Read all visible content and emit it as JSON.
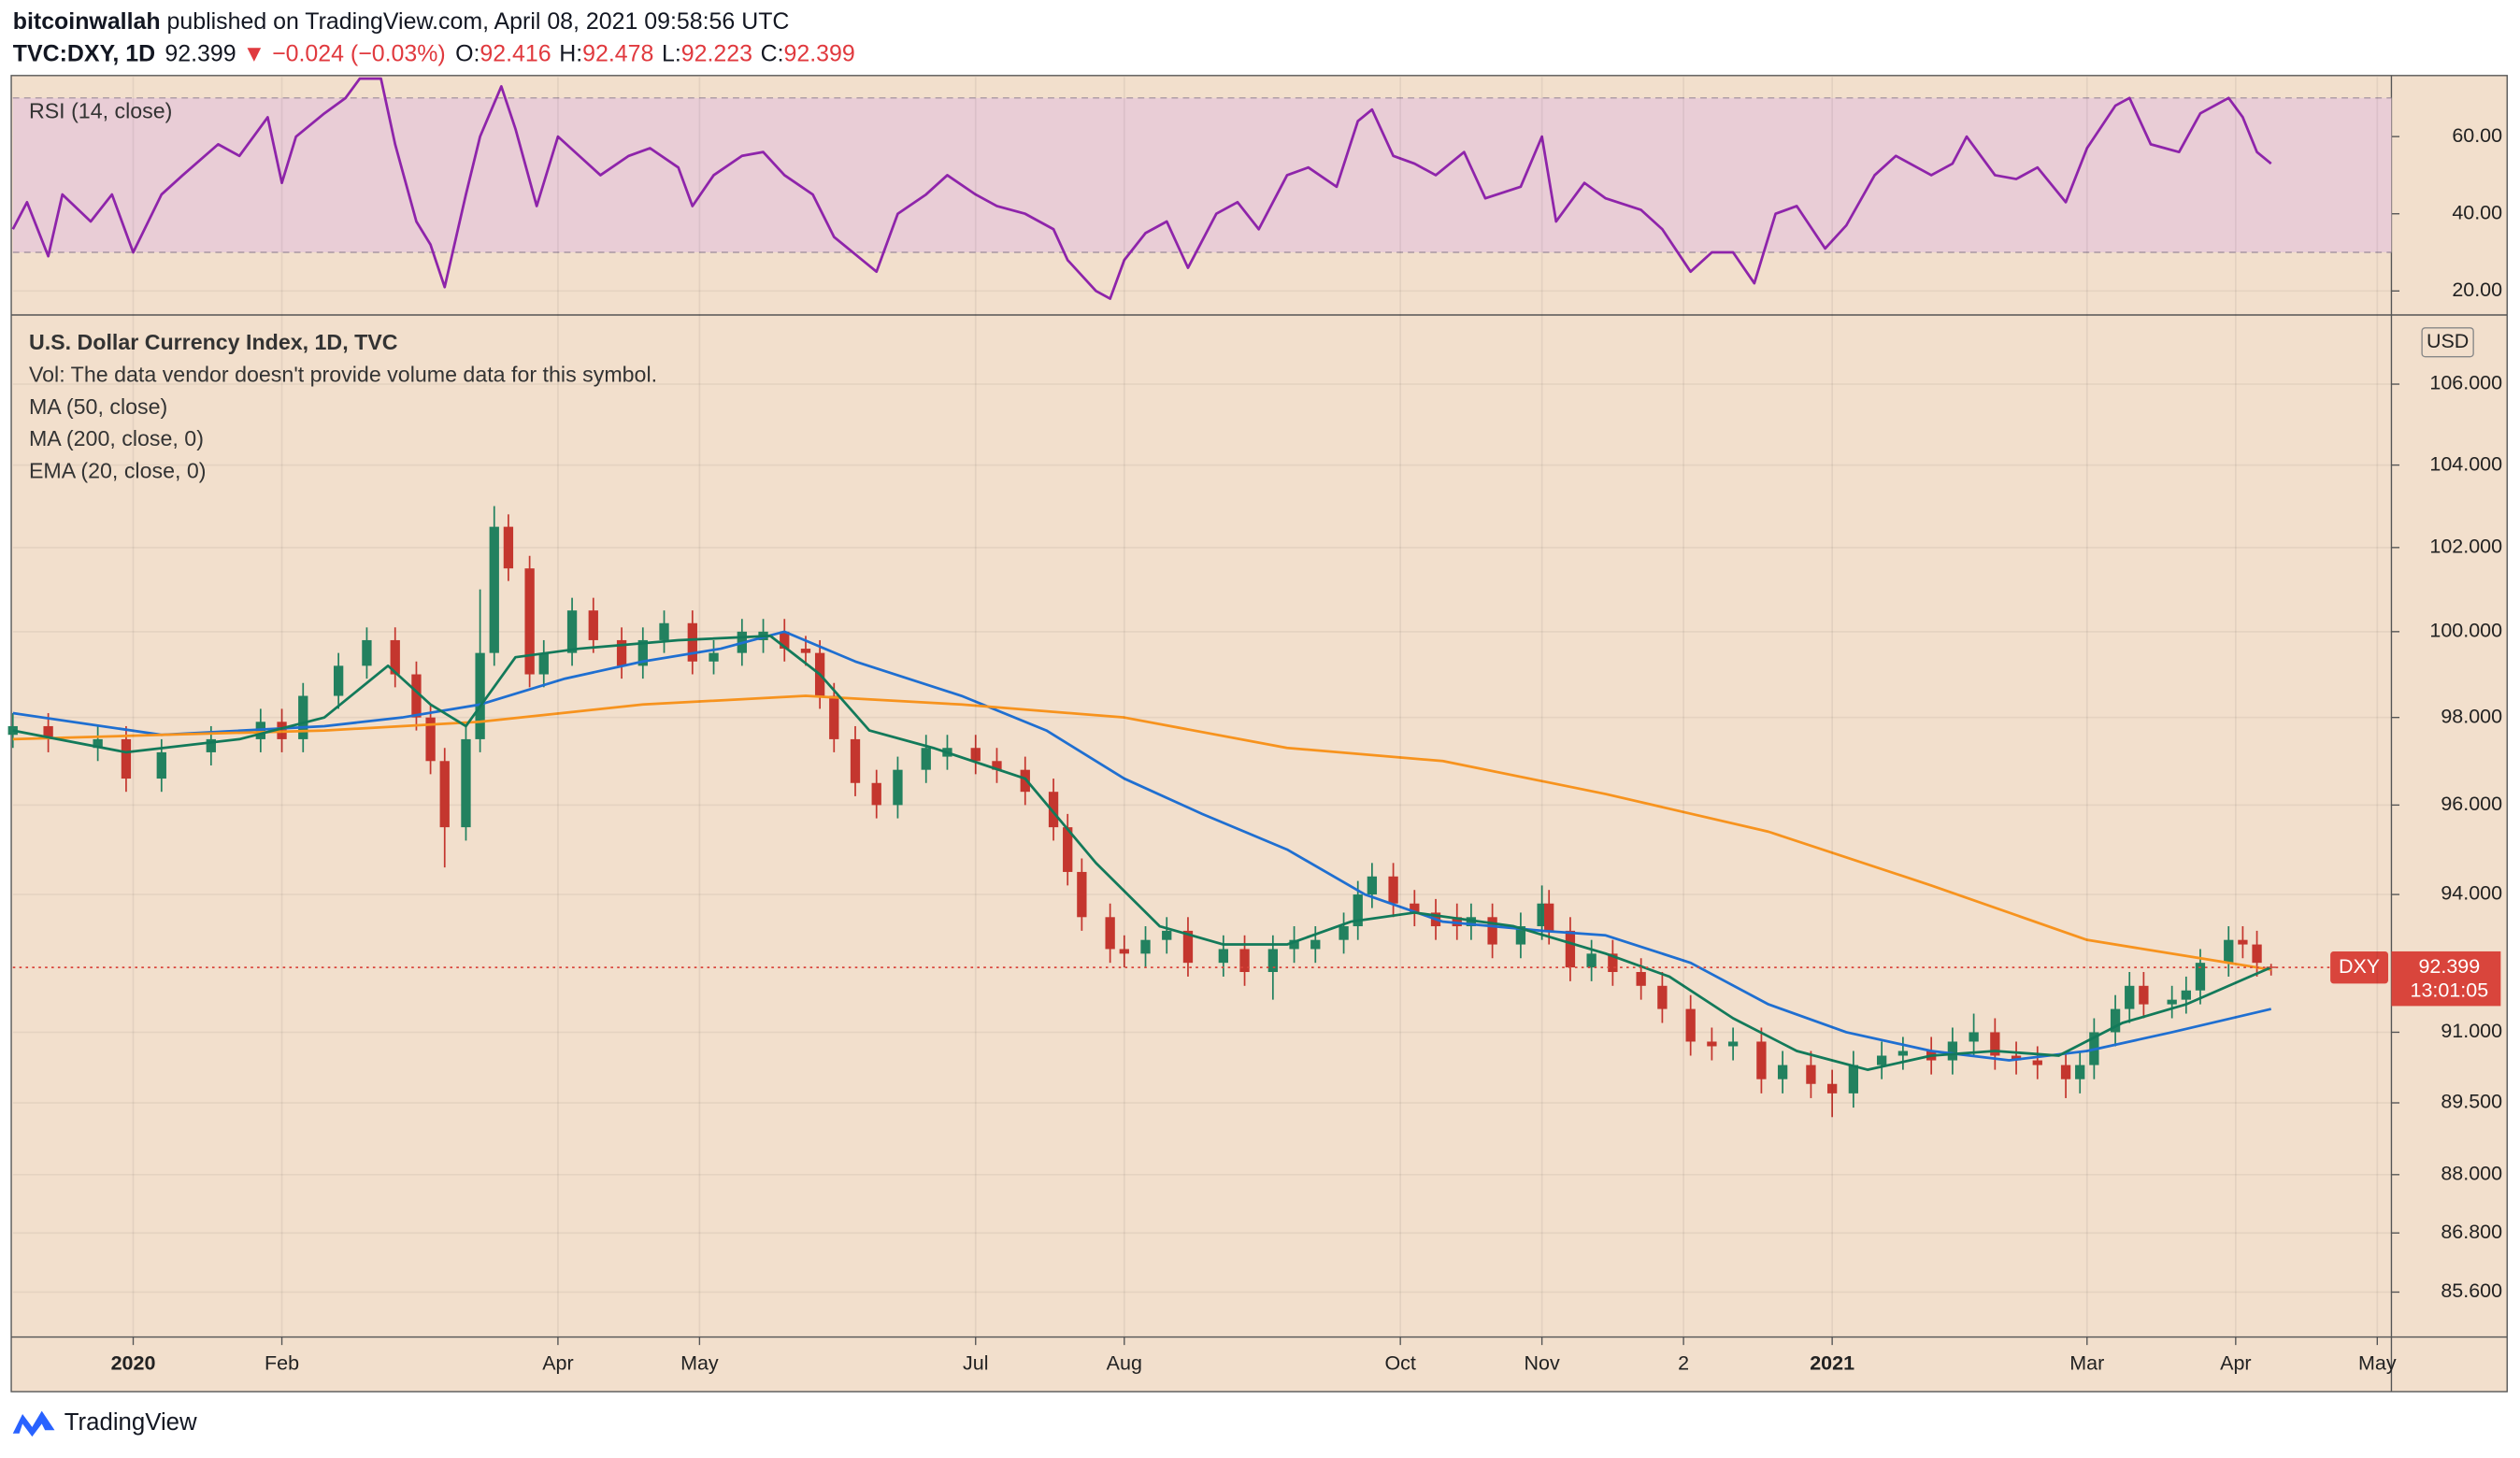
{
  "header": {
    "author": "bitcoinwallah",
    "published": "published on TradingView.com, April 08, 2021 09:58:56 UTC",
    "symbol": "TVC:DXY, 1D",
    "direction": "▼",
    "change": "−0.024 (−0.03%)",
    "open_label": "O:",
    "high_label": "H:",
    "low_label": "L:",
    "close_label": "C:"
  },
  "chart_data": [
    {
      "type": "line",
      "xlim": [
        0,
        336
      ],
      "ylim": [
        14.2,
        75.4
      ],
      "yticks": [
        {
          "value": 20,
          "label": "20.00"
        },
        {
          "value": 40,
          "label": "40.00"
        },
        {
          "value": 60,
          "label": "60.00"
        }
      ],
      "band": [
        30,
        70
      ],
      "band_color": "#e9cdd6",
      "grid": true,
      "series": [
        {
          "name": "RSI (14, close)",
          "color": "#8e24aa",
          "x": [
            0,
            2,
            5,
            7,
            11,
            14,
            17,
            21,
            24,
            29,
            32,
            36,
            38,
            40,
            44,
            47,
            49,
            52,
            54,
            57,
            59,
            61,
            64,
            66,
            69,
            71,
            74,
            77,
            80,
            83,
            87,
            90,
            94,
            96,
            99,
            103,
            106,
            109,
            113,
            116,
            120,
            122,
            125,
            129,
            132,
            136,
            139,
            143,
            147,
            149,
            153,
            155,
            157,
            160,
            163,
            166,
            170,
            173,
            176,
            180,
            183,
            187,
            190,
            192,
            195,
            198,
            201,
            205,
            208,
            213,
            216,
            218,
            222,
            225,
            230,
            233,
            237,
            240,
            243,
            246,
            249,
            252,
            256,
            259,
            263,
            266,
            271,
            274,
            276,
            280,
            283,
            286,
            290,
            293,
            297,
            299,
            302,
            306,
            309,
            313,
            315,
            317,
            319
          ],
          "values": [
            36,
            43,
            29,
            45,
            38,
            45,
            30,
            45,
            50,
            58,
            55,
            65,
            48,
            60,
            66,
            70,
            75,
            75,
            58,
            38,
            32,
            21,
            45,
            60,
            73,
            62,
            42,
            60,
            55,
            50,
            55,
            57,
            52,
            42,
            50,
            55,
            56,
            50,
            45,
            34,
            28,
            25,
            40,
            45,
            50,
            45,
            42,
            40,
            36,
            28,
            20,
            18,
            28,
            35,
            38,
            26,
            40,
            43,
            36,
            50,
            52,
            47,
            64,
            67,
            55,
            53,
            50,
            56,
            44,
            47,
            60,
            38,
            48,
            44,
            41,
            36,
            25,
            30,
            30,
            22,
            40,
            42,
            31,
            37,
            50,
            55,
            50,
            53,
            60,
            50,
            49,
            52,
            43,
            57,
            68,
            70,
            58,
            56,
            66,
            70,
            65,
            56,
            53
          ]
        }
      ]
    },
    {
      "type": "candlestick",
      "title": "U.S. Dollar Currency Index, 1D, TVC",
      "notes": [
        "Vol: The data vendor doesn't provide volume data for this symbol."
      ],
      "currency": "USD",
      "symbol": "DXY",
      "countdown": "13:01:05",
      "log_scale": true,
      "grid": true,
      "xlim": [
        0,
        336
      ],
      "ylim": [
        84.7,
        107.7
      ],
      "yticks": [
        {
          "value": 85.6,
          "label": "85.600"
        },
        {
          "value": 86.8,
          "label": "86.800"
        },
        {
          "value": 88,
          "label": "88.000"
        },
        {
          "value": 89.5,
          "label": "89.500"
        },
        {
          "value": 91,
          "label": "91.000"
        },
        {
          "value": 94,
          "label": "94.000"
        },
        {
          "value": 96,
          "label": "96.000"
        },
        {
          "value": 98,
          "label": "98.000"
        },
        {
          "value": 100,
          "label": "100.000"
        },
        {
          "value": 102,
          "label": "102.000"
        },
        {
          "value": 104,
          "label": "104.000"
        },
        {
          "value": 106,
          "label": "106.000"
        }
      ],
      "xticks": [
        {
          "value": 17,
          "label": "2020"
        },
        {
          "value": 38,
          "label": "Feb"
        },
        {
          "value": 77,
          "label": "Apr"
        },
        {
          "value": 97,
          "label": "May"
        },
        {
          "value": 136,
          "label": "Jul"
        },
        {
          "value": 157,
          "label": "Aug"
        },
        {
          "value": 196,
          "label": "Oct"
        },
        {
          "value": 216,
          "label": "Nov"
        },
        {
          "value": 236,
          "label": "2"
        },
        {
          "value": 257,
          "label": "2021"
        },
        {
          "value": 293,
          "label": "Mar"
        },
        {
          "value": 314,
          "label": "Apr"
        },
        {
          "value": 334,
          "label": "May"
        }
      ],
      "up_color": "#22815f",
      "down_color": "#c4362e",
      "last_color": "#d9453c",
      "x": [
        0,
        5,
        12,
        16,
        21,
        28,
        35,
        38,
        41,
        46,
        50,
        54,
        57,
        59,
        61,
        64,
        66,
        68,
        70,
        73,
        75,
        79,
        82,
        86,
        89,
        92,
        96,
        99,
        103,
        106,
        109,
        112,
        114,
        116,
        119,
        122,
        125,
        129,
        132,
        136,
        139,
        143,
        147,
        149,
        151,
        155,
        157,
        160,
        163,
        166,
        171,
        174,
        178,
        181,
        184,
        188,
        190,
        192,
        195,
        198,
        201,
        204,
        206,
        209,
        213,
        216,
        217,
        220,
        223,
        226,
        230,
        233,
        237,
        240,
        243,
        247,
        250,
        254,
        257,
        260,
        264,
        267,
        271,
        274,
        277,
        280,
        283,
        286,
        290,
        292,
        294,
        297,
        299,
        301,
        305,
        307,
        309,
        313,
        315,
        317,
        319
      ],
      "open": [
        97.6,
        97.8,
        97.3,
        97.5,
        96.6,
        97.2,
        97.5,
        97.9,
        97.5,
        98.5,
        99.2,
        99.8,
        99.0,
        98.0,
        97.0,
        95.5,
        97.5,
        99.5,
        102.5,
        101.5,
        99.0,
        99.5,
        100.5,
        99.8,
        99.2,
        99.8,
        100.2,
        99.3,
        99.5,
        99.8,
        100.0,
        99.6,
        99.5,
        98.5,
        97.5,
        96.5,
        96.0,
        96.8,
        97.1,
        97.3,
        97.0,
        96.8,
        96.3,
        95.5,
        94.5,
        93.5,
        92.8,
        92.7,
        93.0,
        93.2,
        92.5,
        92.8,
        92.3,
        92.8,
        92.8,
        93.0,
        93.3,
        94.0,
        94.4,
        93.8,
        93.6,
        93.5,
        93.3,
        93.5,
        92.9,
        93.3,
        93.8,
        93.2,
        92.4,
        92.7,
        92.3,
        92.0,
        91.5,
        90.8,
        90.7,
        90.8,
        90.0,
        90.3,
        89.9,
        89.7,
        90.3,
        90.5,
        90.6,
        90.4,
        90.8,
        91.0,
        90.5,
        90.4,
        90.3,
        90.0,
        90.3,
        91.0,
        91.5,
        92.0,
        91.6,
        91.7,
        91.9,
        92.5,
        93.0,
        92.9,
        92.416
      ],
      "high": [
        98.1,
        98.1,
        97.8,
        97.8,
        97.5,
        97.8,
        98.2,
        98.2,
        98.8,
        99.5,
        100.1,
        100.1,
        99.3,
        98.3,
        97.3,
        97.8,
        101.0,
        103.0,
        102.8,
        101.8,
        99.8,
        100.8,
        100.8,
        100.1,
        100.1,
        100.5,
        100.5,
        99.8,
        100.3,
        100.3,
        100.3,
        99.9,
        99.8,
        98.8,
        97.8,
        96.8,
        97.1,
        97.6,
        97.6,
        97.6,
        97.3,
        97.1,
        96.6,
        95.8,
        94.8,
        93.8,
        93.1,
        93.3,
        93.5,
        93.5,
        93.1,
        93.1,
        93.1,
        93.3,
        93.3,
        93.6,
        94.3,
        94.7,
        94.7,
        94.1,
        93.9,
        93.8,
        93.8,
        93.8,
        93.6,
        94.2,
        94.1,
        93.5,
        93.0,
        93.0,
        92.6,
        92.3,
        91.8,
        91.1,
        91.1,
        91.1,
        90.6,
        90.6,
        90.2,
        90.6,
        90.8,
        90.9,
        90.9,
        91.1,
        91.4,
        91.3,
        90.8,
        90.7,
        90.6,
        90.6,
        91.3,
        91.8,
        92.3,
        92.3,
        92.0,
        92.2,
        92.8,
        93.3,
        93.3,
        93.2,
        92.478
      ],
      "low": [
        97.3,
        97.2,
        97.0,
        96.3,
        96.3,
        96.9,
        97.2,
        97.2,
        97.2,
        98.2,
        98.9,
        98.7,
        97.7,
        96.7,
        94.6,
        95.2,
        97.2,
        99.2,
        101.2,
        98.7,
        98.7,
        99.2,
        99.5,
        98.9,
        98.9,
        99.5,
        99.0,
        99.0,
        99.2,
        99.5,
        99.3,
        99.2,
        98.2,
        97.2,
        96.2,
        95.7,
        95.7,
        96.5,
        96.8,
        96.7,
        96.5,
        96.0,
        95.2,
        94.2,
        93.2,
        92.5,
        92.4,
        92.4,
        92.7,
        92.2,
        92.2,
        92.0,
        91.7,
        92.5,
        92.5,
        92.7,
        93.0,
        93.7,
        93.5,
        93.3,
        93.0,
        93.0,
        93.0,
        92.6,
        92.6,
        93.0,
        92.9,
        92.1,
        92.1,
        92.0,
        91.7,
        91.2,
        90.5,
        90.4,
        90.4,
        89.7,
        89.7,
        89.6,
        89.2,
        89.4,
        90.0,
        90.2,
        90.1,
        90.1,
        90.5,
        90.2,
        90.1,
        90.0,
        89.6,
        89.7,
        90.0,
        90.7,
        91.2,
        91.3,
        91.3,
        91.4,
        91.6,
        92.2,
        92.6,
        92.2,
        92.223
      ],
      "close": [
        97.8,
        97.5,
        97.5,
        96.6,
        97.2,
        97.5,
        97.9,
        97.5,
        98.5,
        99.2,
        99.8,
        99.0,
        98.0,
        97.0,
        95.5,
        97.5,
        99.5,
        102.5,
        101.5,
        99.0,
        99.5,
        100.5,
        99.8,
        99.2,
        99.8,
        100.2,
        99.3,
        99.5,
        100.0,
        100.0,
        99.6,
        99.5,
        98.5,
        97.5,
        96.5,
        96.0,
        96.8,
        97.3,
        97.3,
        97.0,
        96.8,
        96.3,
        95.5,
        94.5,
        93.5,
        92.8,
        92.7,
        93.0,
        93.2,
        92.5,
        92.8,
        92.3,
        92.8,
        93.0,
        93.0,
        93.3,
        94.0,
        94.4,
        93.8,
        93.6,
        93.3,
        93.3,
        93.5,
        92.9,
        93.3,
        93.8,
        93.2,
        92.4,
        92.7,
        92.3,
        92.0,
        91.5,
        90.8,
        90.7,
        90.8,
        90.0,
        90.3,
        89.9,
        89.7,
        90.3,
        90.5,
        90.6,
        90.4,
        90.8,
        91.0,
        90.5,
        90.4,
        90.3,
        90.0,
        90.3,
        91.0,
        91.5,
        92.0,
        91.6,
        91.7,
        91.9,
        92.5,
        93.0,
        92.9,
        92.5,
        92.399
      ],
      "series": [
        {
          "name": "MA (50, close)",
          "color": "#1f6fd1",
          "x": [
            0,
            21,
            44,
            55,
            66,
            78,
            89,
            100,
            109,
            119,
            134,
            146,
            157,
            168,
            180,
            191,
            202,
            216,
            225,
            237,
            248,
            259,
            271,
            282,
            293,
            305,
            319
          ],
          "values": [
            98.1,
            97.6,
            97.8,
            98.0,
            98.3,
            98.9,
            99.3,
            99.6,
            100.0,
            99.3,
            98.5,
            97.7,
            96.6,
            95.8,
            95.0,
            94.0,
            93.4,
            93.2,
            93.1,
            92.5,
            91.6,
            91.0,
            90.6,
            90.4,
            90.6,
            91.0,
            91.5
          ]
        },
        {
          "name": "MA (200, close, 0)",
          "color": "#f7931e",
          "x": [
            0,
            21,
            44,
            66,
            89,
            112,
            134,
            157,
            180,
            202,
            225,
            248,
            271,
            293,
            309,
            319
          ],
          "values": [
            97.5,
            97.6,
            97.7,
            97.9,
            98.3,
            98.5,
            98.3,
            98.0,
            97.3,
            97.0,
            96.25,
            95.4,
            94.2,
            93.0,
            92.6,
            92.35
          ]
        },
        {
          "name": "EMA (20, close, 0)",
          "color": "#137a5a",
          "x": [
            0,
            16,
            32,
            44,
            53,
            59,
            64,
            71,
            80,
            94,
            107,
            114,
            121,
            130,
            143,
            153,
            162,
            171,
            180,
            189,
            198,
            212,
            225,
            234,
            243,
            252,
            262,
            271,
            280,
            289,
            298,
            307,
            319
          ],
          "values": [
            97.7,
            97.2,
            97.5,
            98.0,
            99.2,
            98.3,
            97.8,
            99.4,
            99.6,
            99.8,
            99.9,
            99.0,
            97.7,
            97.3,
            96.6,
            94.7,
            93.3,
            92.9,
            92.9,
            93.4,
            93.6,
            93.3,
            92.7,
            92.2,
            91.3,
            90.6,
            90.2,
            90.5,
            90.6,
            90.5,
            91.2,
            91.6,
            92.4
          ]
        }
      ]
    }
  ],
  "footer": {
    "brand": "TradingView"
  }
}
